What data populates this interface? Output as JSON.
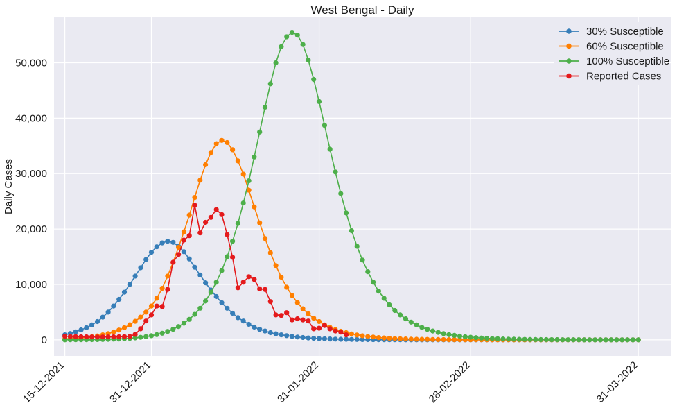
{
  "chart_data": {
    "type": "line",
    "title": "West Bengal - Daily",
    "xlabel": "",
    "ylabel": "Daily Cases",
    "x_start": "15-12-2021",
    "x_end": "31-03-2022",
    "xlim": [
      "13-12-2021",
      "06-04-2022"
    ],
    "ylim": [
      -2900,
      58200
    ],
    "x_ticks": [
      "15-12-2021",
      "31-12-2021",
      "31-01-2022",
      "28-02-2022",
      "31-03-2022"
    ],
    "x_tick_labels": [
      "15-12-2021",
      "31-12-2021",
      "31-01-2022",
      "28-02-2022",
      "31-03-2022"
    ],
    "y_ticks": [
      0,
      10000,
      20000,
      30000,
      40000,
      50000
    ],
    "y_tick_labels": [
      "0",
      "10,000",
      "20,000",
      "30,000",
      "40,000",
      "50,000"
    ],
    "grid": true,
    "legend_position": "top-right",
    "series": [
      {
        "name": "30% Susceptible",
        "color": "#377eb8",
        "values": [
          900,
          1150,
          1450,
          1800,
          2200,
          2700,
          3300,
          4100,
          5000,
          6100,
          7300,
          8600,
          10000,
          11500,
          13000,
          14500,
          15800,
          16800,
          17500,
          17800,
          17600,
          16900,
          15900,
          14600,
          13100,
          11700,
          10300,
          9000,
          7800,
          6700,
          5700,
          4800,
          4000,
          3400,
          2800,
          2300,
          1900,
          1600,
          1300,
          1100,
          900,
          750,
          620,
          510,
          420,
          340,
          280,
          230,
          190,
          160,
          130,
          110,
          90,
          75,
          62,
          50,
          42,
          35,
          28,
          23,
          19,
          15,
          12,
          10,
          8,
          7,
          6,
          5,
          4,
          3,
          3,
          2,
          2,
          2,
          1,
          1,
          1,
          1,
          1,
          1,
          0,
          0,
          0,
          0,
          0,
          0,
          0,
          0,
          0,
          0,
          0,
          0,
          0,
          0,
          0,
          0,
          0,
          0,
          0,
          0,
          0,
          0,
          0,
          0,
          0,
          0,
          0
        ]
      },
      {
        "name": "60% Susceptible",
        "color": "#ff7f00",
        "values": [
          150,
          200,
          260,
          340,
          440,
          560,
          710,
          900,
          1130,
          1420,
          1770,
          2200,
          2720,
          3350,
          4100,
          5000,
          6100,
          7500,
          9300,
          11500,
          14000,
          16700,
          19500,
          22500,
          25700,
          28800,
          31600,
          33800,
          35400,
          36000,
          35600,
          34300,
          32300,
          29900,
          27000,
          24000,
          21100,
          18300,
          15700,
          13400,
          11300,
          9500,
          8000,
          6700,
          5600,
          4700,
          3900,
          3300,
          2700,
          2250,
          1850,
          1550,
          1300,
          1070,
          880,
          730,
          600,
          500,
          410,
          340,
          280,
          235,
          195,
          160,
          133,
          110,
          92,
          76,
          63,
          52,
          43,
          36,
          30,
          25,
          21,
          17,
          14,
          12,
          10,
          8,
          7,
          6,
          5,
          4,
          3,
          3,
          2,
          2,
          2,
          1,
          1,
          1,
          1,
          1,
          1,
          0,
          0,
          0,
          0,
          0,
          0,
          0,
          0,
          0,
          0,
          0,
          0
        ]
      },
      {
        "name": "100% Susceptible",
        "color": "#4daf4a",
        "values": [
          10,
          14,
          18,
          24,
          32,
          42,
          55,
          72,
          95,
          124,
          160,
          210,
          270,
          350,
          450,
          580,
          740,
          950,
          1200,
          1520,
          1900,
          2400,
          3000,
          3700,
          4600,
          5700,
          7000,
          8600,
          10400,
          12500,
          15000,
          17800,
          21000,
          24700,
          28700,
          33000,
          37500,
          42000,
          46200,
          50000,
          52900,
          54700,
          55500,
          55000,
          53300,
          50500,
          47000,
          43000,
          38700,
          34400,
          30300,
          26400,
          22900,
          19700,
          16900,
          14400,
          12300,
          10400,
          8800,
          7500,
          6300,
          5300,
          4500,
          3800,
          3200,
          2700,
          2250,
          1900,
          1600,
          1350,
          1130,
          950,
          800,
          670,
          560,
          470,
          395,
          330,
          275,
          230,
          195,
          160,
          135,
          113,
          95,
          80,
          67,
          56,
          47,
          39,
          33,
          27,
          23,
          19,
          16,
          13,
          11,
          9,
          8,
          7,
          6,
          5,
          4,
          3,
          3,
          2,
          2
        ]
      },
      {
        "name": "Reported Cases",
        "color": "#e41a1c",
        "values": [
          650,
          610,
          580,
          560,
          540,
          520,
          510,
          520,
          530,
          545,
          560,
          580,
          620,
          1000,
          2000,
          3400,
          4500,
          6100,
          6000,
          9100,
          14000,
          15400,
          18000,
          18800,
          24300,
          19300,
          21200,
          22100,
          23500,
          22600,
          19000,
          14900,
          9400,
          10400,
          11400,
          10900,
          9200,
          9100,
          6900,
          4500,
          4400,
          4900,
          3600,
          3800,
          3600,
          3400,
          2000,
          2100,
          2600,
          2000,
          1600,
          1400,
          900
        ]
      }
    ]
  }
}
